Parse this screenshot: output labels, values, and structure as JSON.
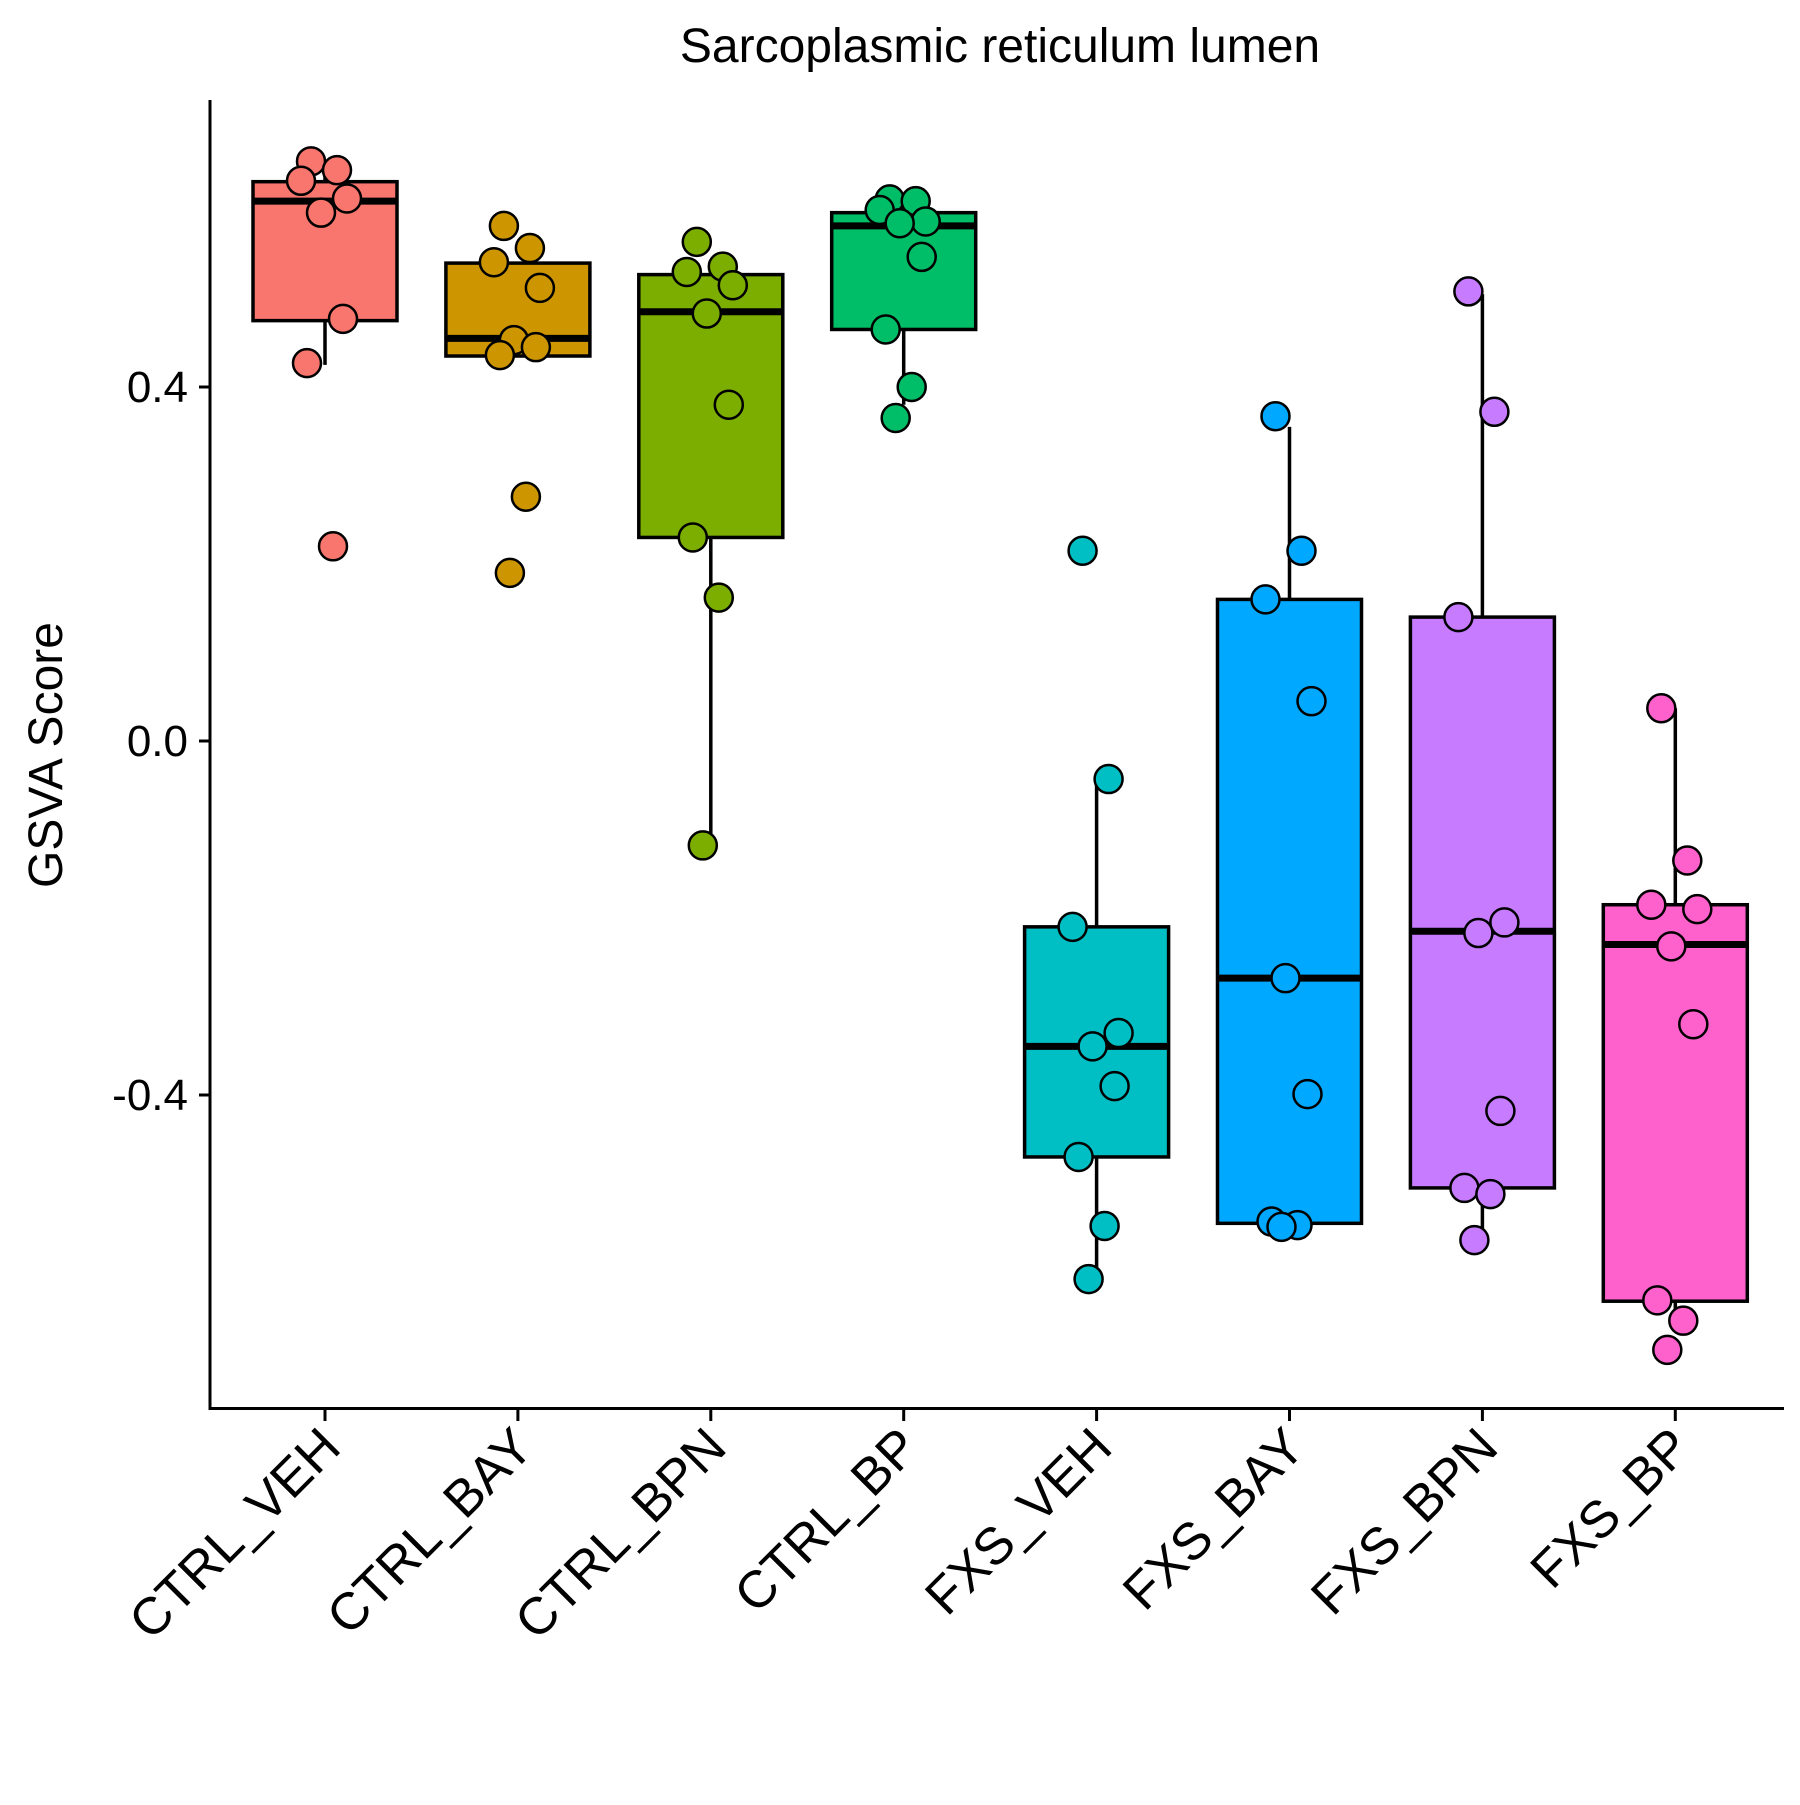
{
  "chart_data": {
    "type": "box",
    "title": "Sarcoplasmic reticulum lumen",
    "xlabel": "",
    "ylabel": "GSVA Score",
    "ylim": [
      -0.75,
      0.72
    ],
    "yticks": [
      0.4,
      0.0,
      -0.4
    ],
    "ytick_labels": [
      "0.4",
      "0.0",
      "-0.4"
    ],
    "grid": false,
    "legend": "none",
    "categories": [
      "CTRL_VEH",
      "CTRL_BAY",
      "CTRL_BPN",
      "CTRL_BP",
      "FXS_VEH",
      "FXS_BAY",
      "FXS_BPN",
      "FXS_BP"
    ],
    "groups": [
      {
        "name": "CTRL_VEH",
        "color": "#F8766D",
        "q1": 0.475,
        "median": 0.61,
        "q3": 0.632,
        "whisker_low": 0.425,
        "whisker_high": 0.655,
        "points": [
          0.655,
          0.645,
          0.633,
          0.613,
          0.597,
          0.477,
          0.427,
          0.22
        ]
      },
      {
        "name": "CTRL_BAY",
        "color": "#CD9600",
        "q1": 0.435,
        "median": 0.455,
        "q3": 0.54,
        "whisker_low": 0.435,
        "whisker_high": 0.54,
        "points": [
          0.582,
          0.557,
          0.541,
          0.512,
          0.453,
          0.445,
          0.436,
          0.276,
          0.19
        ]
      },
      {
        "name": "CTRL_BPN",
        "color": "#7CAE00",
        "q1": 0.23,
        "median": 0.485,
        "q3": 0.527,
        "whisker_low": -0.115,
        "whisker_high": 0.527,
        "points": [
          0.564,
          0.536,
          0.53,
          0.515,
          0.483,
          0.38,
          0.23,
          0.162,
          -0.118
        ]
      },
      {
        "name": "CTRL_BP",
        "color": "#00BE67",
        "q1": 0.465,
        "median": 0.582,
        "q3": 0.597,
        "whisker_low": 0.38,
        "whisker_high": 0.597,
        "points": [
          0.612,
          0.61,
          0.6,
          0.587,
          0.585,
          0.547,
          0.465,
          0.4,
          0.365
        ]
      },
      {
        "name": "FXS_VEH",
        "color": "#00BFC4",
        "q1": -0.47,
        "median": -0.345,
        "q3": -0.21,
        "whisker_low": -0.6,
        "whisker_high": -0.045,
        "points": [
          0.215,
          -0.043,
          -0.21,
          -0.33,
          -0.345,
          -0.39,
          -0.47,
          -0.548,
          -0.608
        ]
      },
      {
        "name": "FXS_BAY",
        "color": "#00A9FF",
        "q1": -0.545,
        "median": -0.268,
        "q3": 0.16,
        "whisker_low": -0.545,
        "whisker_high": 0.355,
        "points": [
          0.367,
          0.215,
          0.16,
          0.045,
          -0.268,
          -0.399,
          -0.543,
          -0.547,
          -0.549
        ]
      },
      {
        "name": "FXS_BPN",
        "color": "#C77CFF",
        "q1": -0.505,
        "median": -0.215,
        "q3": 0.14,
        "whisker_low": -0.56,
        "whisker_high": 0.505,
        "points": [
          0.508,
          0.372,
          0.14,
          -0.205,
          -0.217,
          -0.418,
          -0.505,
          -0.512,
          -0.564
        ]
      },
      {
        "name": "FXS_BP",
        "color": "#FF61CC",
        "q1": -0.633,
        "median": -0.23,
        "q3": -0.185,
        "whisker_low": -0.66,
        "whisker_high": 0.037,
        "points": [
          0.037,
          -0.135,
          -0.185,
          -0.19,
          -0.232,
          -0.32,
          -0.632,
          -0.655,
          -0.688
        ]
      }
    ]
  }
}
